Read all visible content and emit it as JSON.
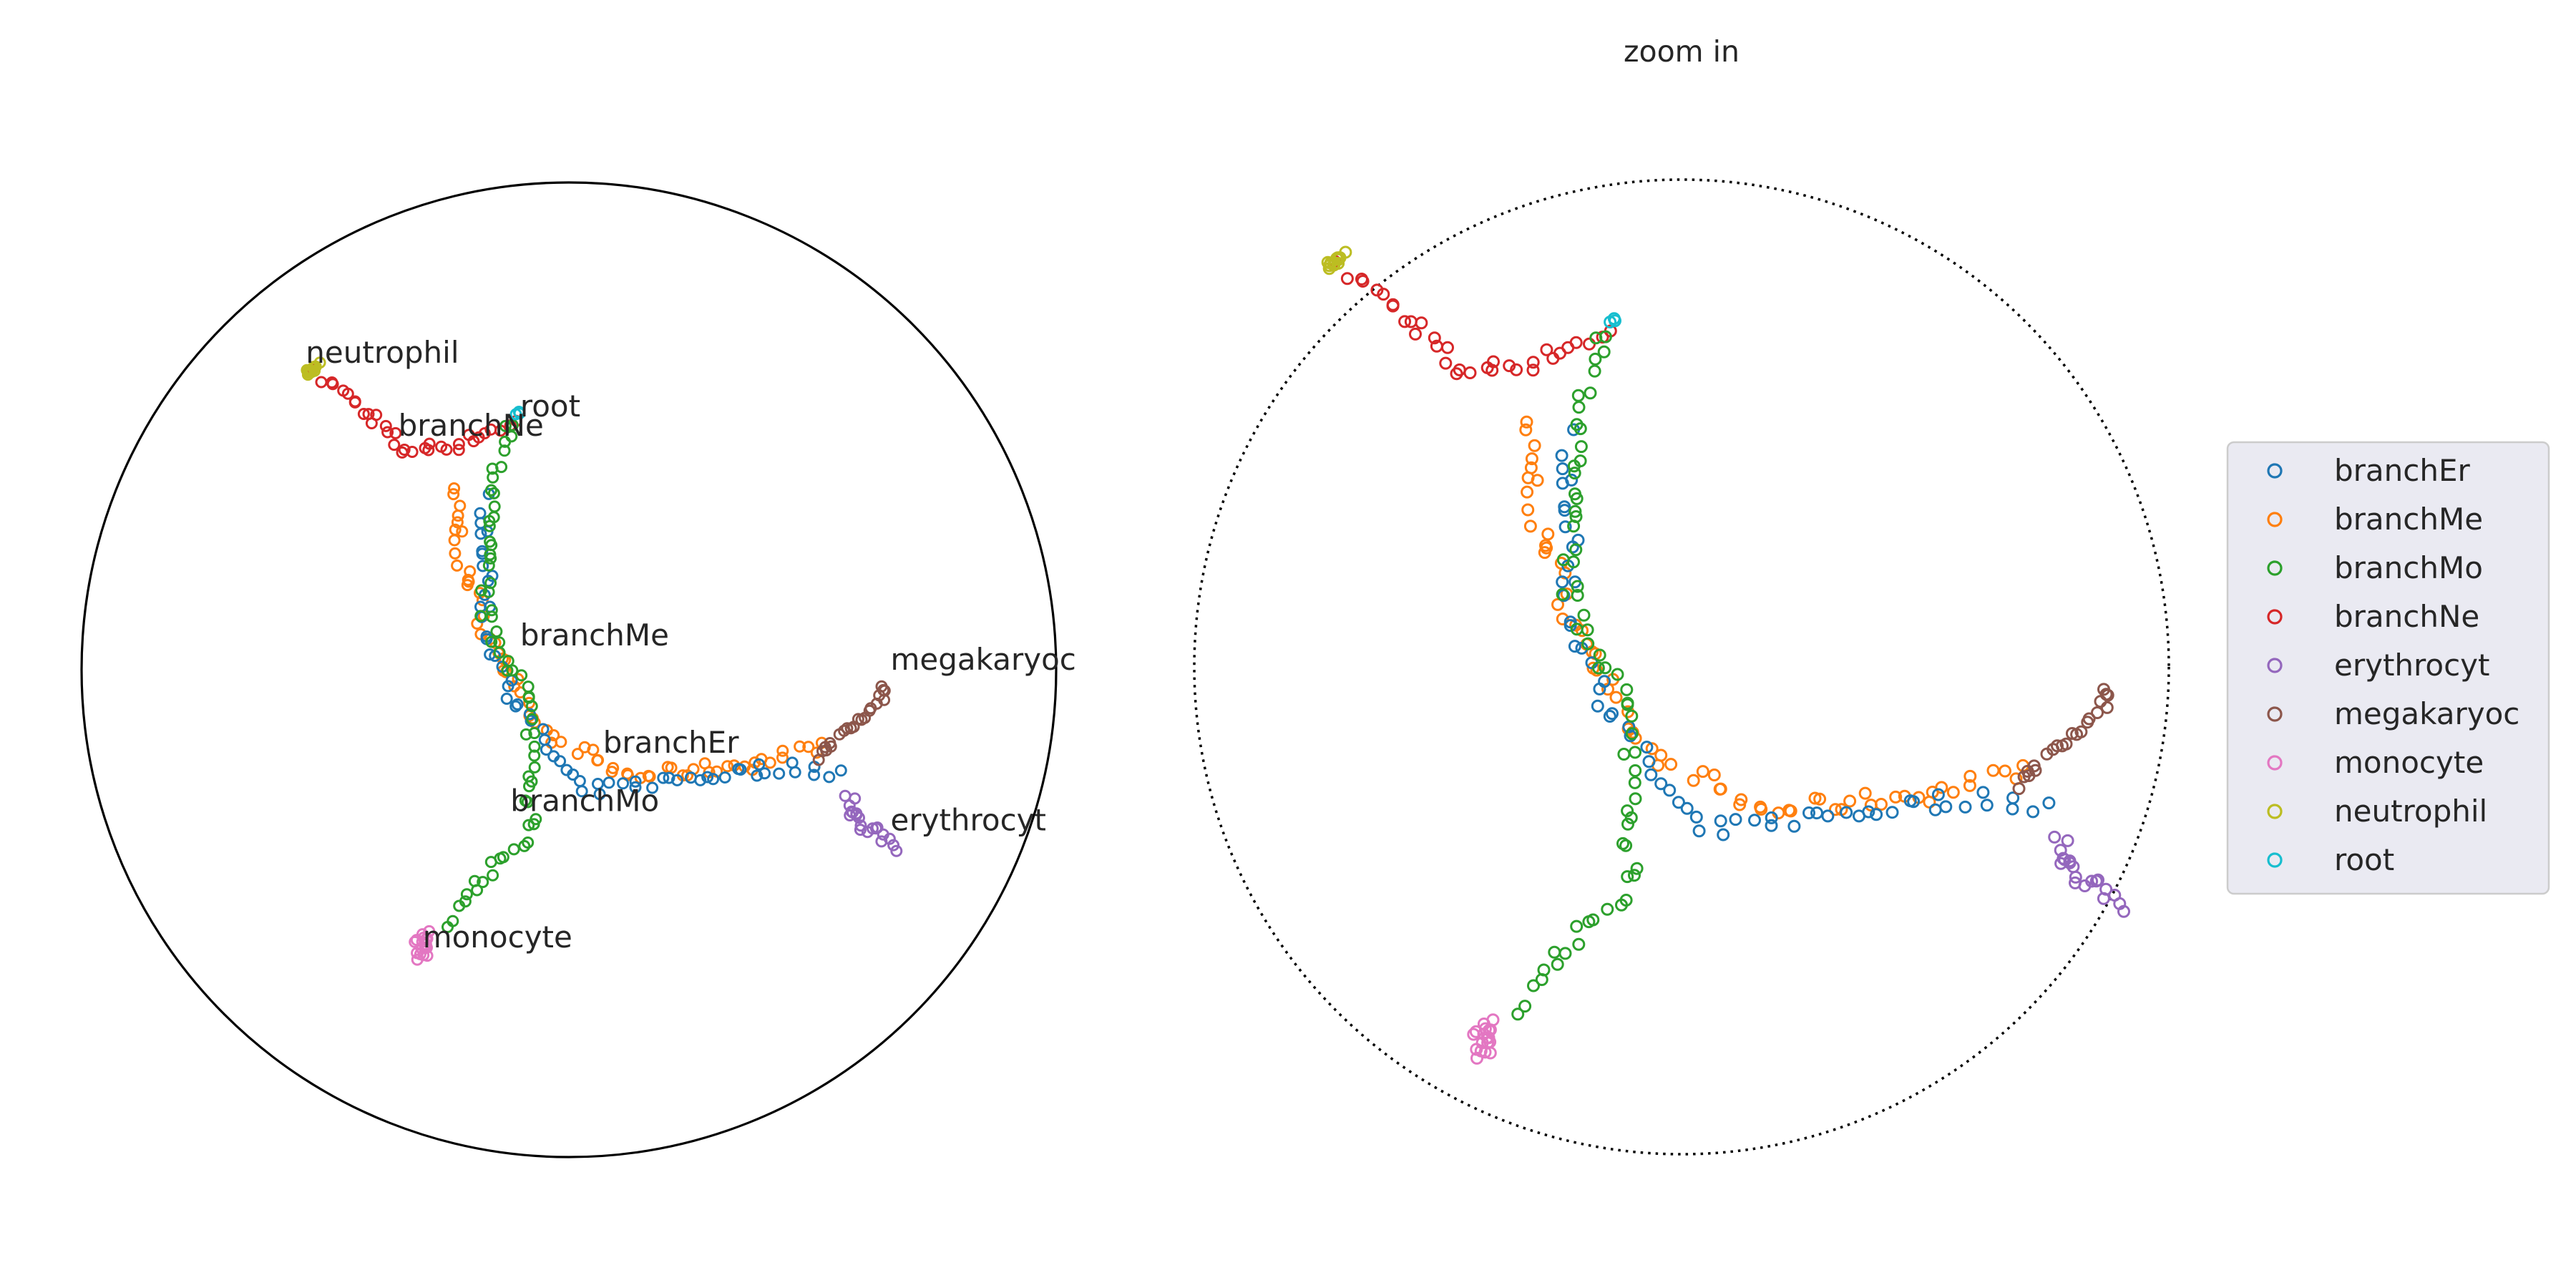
{
  "chart_data": [
    {
      "type": "scatter",
      "panel": "full",
      "title": "",
      "xlabel": "",
      "ylabel": "",
      "xlim": [
        -1,
        1
      ],
      "ylim": [
        -1,
        1
      ],
      "boundary": "unit-disk-solid",
      "grid": false,
      "annotations": [
        {
          "text": "neutrophil",
          "x": -0.54,
          "y": 0.63
        },
        {
          "text": "root",
          "x": -0.1,
          "y": 0.52
        },
        {
          "text": "branchNe",
          "x": -0.35,
          "y": 0.48
        },
        {
          "text": "branchMe",
          "x": -0.1,
          "y": 0.05
        },
        {
          "text": "megakaryoc",
          "x": 0.66,
          "y": 0.0
        },
        {
          "text": "branchEr",
          "x": 0.07,
          "y": -0.17
        },
        {
          "text": "branchMo",
          "x": -0.12,
          "y": -0.29
        },
        {
          "text": "erythrocyt",
          "x": 0.66,
          "y": -0.33
        },
        {
          "text": "monocyte",
          "x": -0.3,
          "y": -0.57
        }
      ]
    },
    {
      "type": "scatter",
      "panel": "zoom",
      "title": "zoom in",
      "xlabel": "",
      "ylabel": "",
      "boundary": "unit-disk-dotted",
      "grid": false,
      "legend_position": "right",
      "series": [
        {
          "name": "branchEr",
          "color": "#1f77b4"
        },
        {
          "name": "branchMe",
          "color": "#ff7f0e"
        },
        {
          "name": "branchMo",
          "color": "#2ca02c"
        },
        {
          "name": "branchNe",
          "color": "#d62728"
        },
        {
          "name": "erythrocyt",
          "color": "#9467bd"
        },
        {
          "name": "megakaryoc",
          "color": "#8c564b"
        },
        {
          "name": "monocyte",
          "color": "#e377c2"
        },
        {
          "name": "neutrophil",
          "color": "#bcbd22"
        },
        {
          "name": "root",
          "color": "#17becf"
        }
      ]
    }
  ]
}
